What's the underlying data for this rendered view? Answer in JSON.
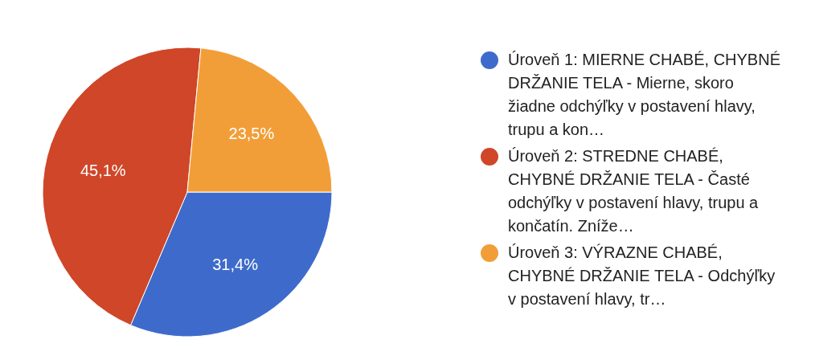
{
  "chart_data": {
    "type": "pie",
    "categories": [
      "Úroveň 1: MIERNE CHABÉ, CHYBNÉ DRŽANIE TELA - Mierne, skoro žiadne odchýľky v postavení hlavy, trupu a kon…",
      "Úroveň 2: STREDNE CHABÉ, CHYBNÉ DRŽANIE TELA - Časté odchýľky v postavení hlavy, trupu a končatín. Zníže…",
      "Úroveň 3: VÝRAZNE CHABÉ, CHYBNÉ DRŽANIE TELA - Odchýľky v postavení hlavy, tr…"
    ],
    "values": [
      31.4,
      45.1,
      23.5
    ],
    "colors": [
      "#3e6bcb",
      "#cf4628",
      "#f29e38"
    ],
    "value_labels": [
      "31,4%",
      "45,1%",
      "23,5%"
    ],
    "legend": "right"
  }
}
